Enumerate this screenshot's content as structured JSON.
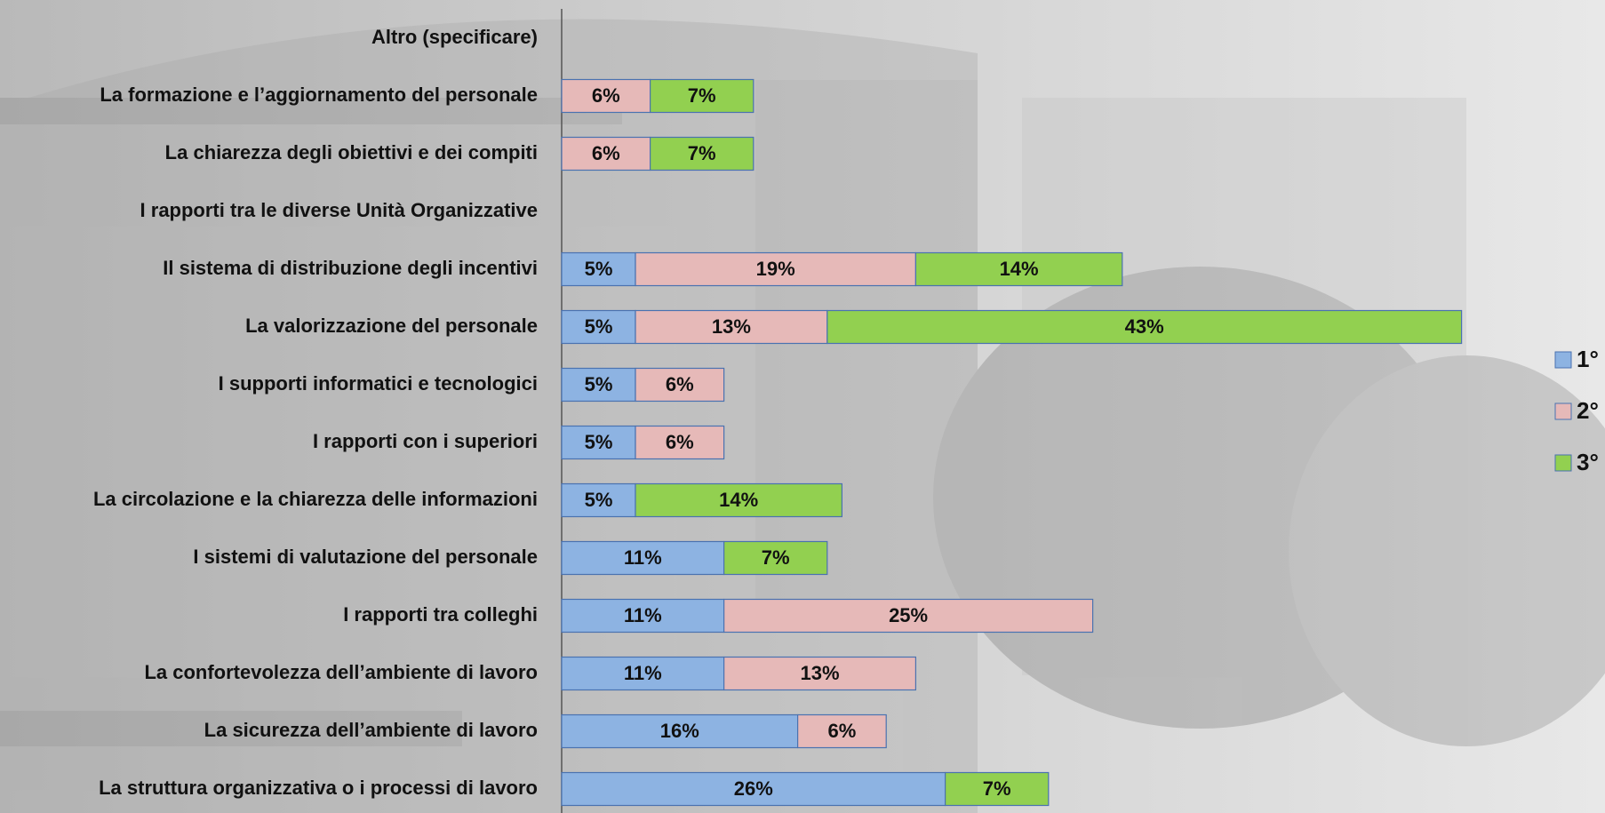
{
  "chart_data": {
    "type": "stacked-bar-horizontal",
    "categories": [
      "Altro (specificare)",
      "La formazione e l’aggiornamento del personale",
      "La chiarezza degli obiettivi e dei compiti",
      "I rapporti tra le diverse Unità Organizzative",
      "Il sistema di distribuzione degli incentivi",
      "La valorizzazione del personale",
      "I supporti informatici e tecnologici",
      "I rapporti con i superiori",
      "La circolazione e la chiarezza delle informazioni",
      "I sistemi di valutazione del personale",
      "I rapporti tra colleghi",
      "La confortevolezza dell’ambiente di lavoro",
      "La sicurezza dell’ambiente di lavoro",
      "La struttura organizzativa o i processi di lavoro"
    ],
    "series": [
      {
        "name": "1°",
        "color": "#8db3e2",
        "values": [
          null,
          null,
          null,
          null,
          5,
          5,
          5,
          5,
          5,
          11,
          11,
          11,
          16,
          26
        ],
        "value_labels": [
          null,
          null,
          null,
          null,
          "5%",
          "5%",
          "5%",
          "5%",
          "5%",
          "11%",
          "11%",
          "11%",
          "16%",
          "26%"
        ]
      },
      {
        "name": "2°",
        "color": "#e6b9b8",
        "values": [
          null,
          6,
          6,
          null,
          19,
          13,
          6,
          6,
          null,
          null,
          25,
          13,
          6,
          null
        ],
        "value_labels": [
          null,
          "6%",
          "6%",
          null,
          "19%",
          "13%",
          "6%",
          "6%",
          null,
          null,
          "25%",
          "13%",
          "6%",
          null
        ]
      },
      {
        "name": "3°",
        "color": "#92d050",
        "values": [
          null,
          7,
          7,
          null,
          14,
          43,
          null,
          null,
          14,
          7,
          null,
          null,
          null,
          7
        ],
        "value_labels": [
          null,
          "7%",
          "7%",
          null,
          "14%",
          "43%",
          null,
          null,
          "14%",
          "7%",
          null,
          null,
          null,
          "7%"
        ]
      }
    ],
    "legend": "right"
  }
}
